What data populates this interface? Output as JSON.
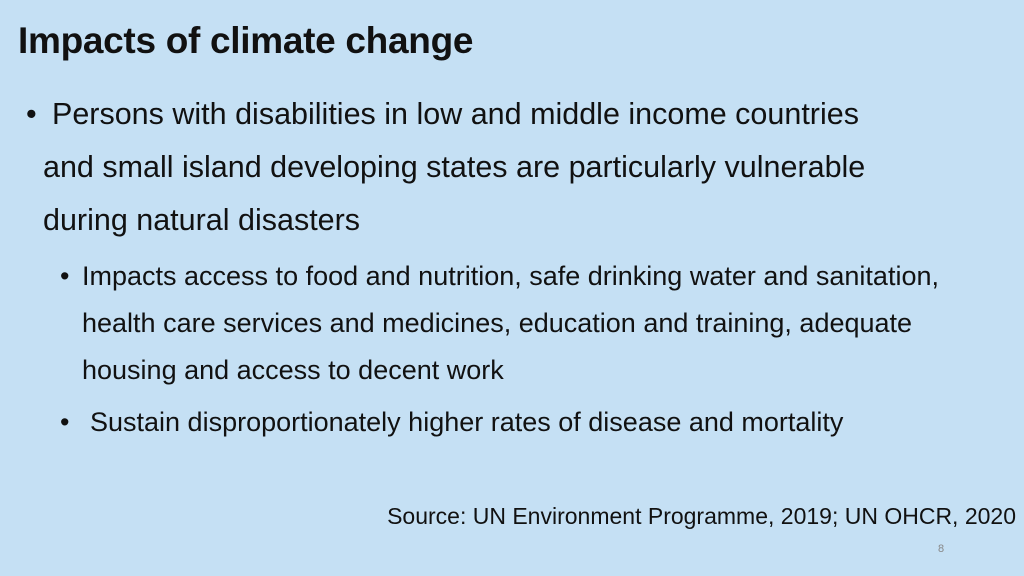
{
  "slide": {
    "title": "Impacts of climate change",
    "bullets": [
      {
        "marker": "•",
        "line1": "Persons with disabilities in low and middle income countries",
        "line2": "and small island developing states are particularly vulnerable",
        "line3": "during natural disasters"
      },
      {
        "marker": "•",
        "text": "Impacts access to food and nutrition, safe drinking water and sanitation, health care services and medicines, education and training, adequate housing and access to decent work"
      },
      {
        "marker": "•",
        "text": "Sustain disproportionately higher rates of disease and mortality"
      }
    ],
    "source": "Source: UN Environment Programme, 2019; UN OHCR, 2020",
    "page_number": "8"
  },
  "colors": {
    "background": "#c5e0f4",
    "text": "#111111",
    "page_number": "#888888"
  }
}
